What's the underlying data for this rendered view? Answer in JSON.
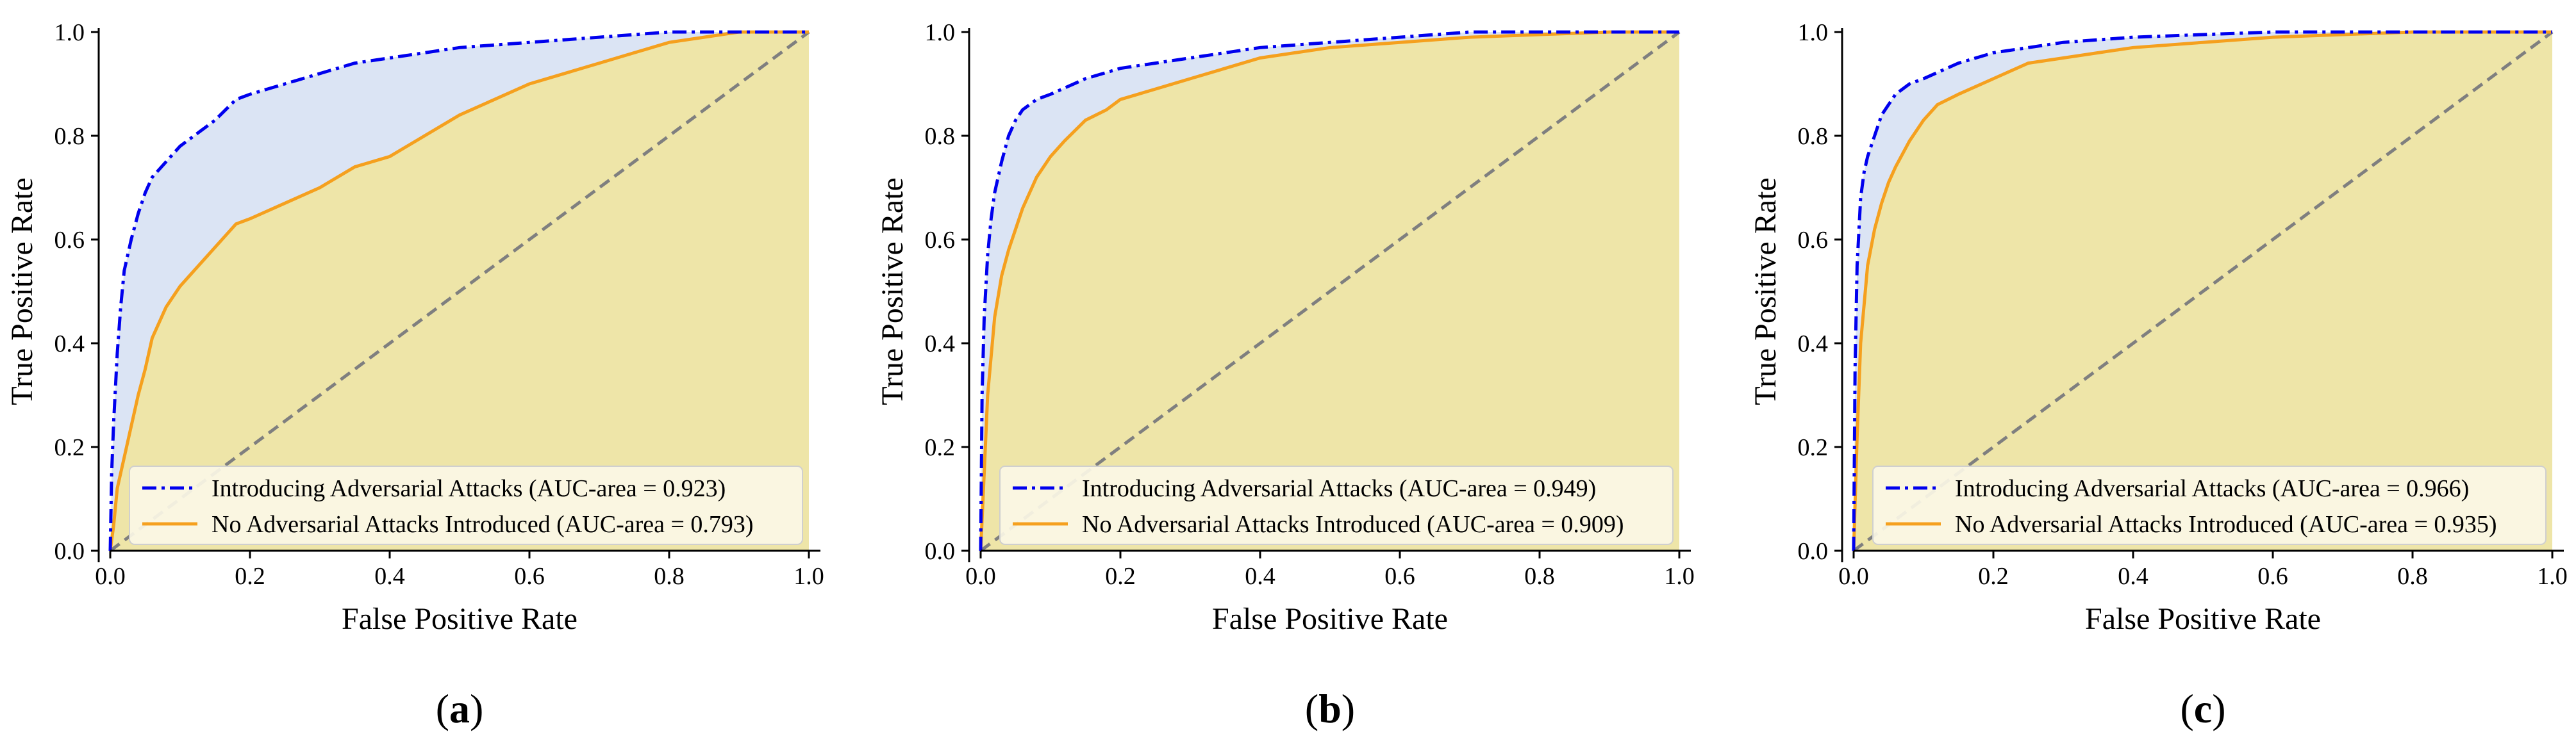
{
  "colors": {
    "adversarial_line": "#0000ee",
    "adversarial_fill": "#dbe4f4",
    "no_adversarial_line": "#f5a01e",
    "no_adversarial_fill": "#eee5a8",
    "chance_line": "#7f7f7f",
    "legend_background": "#fbf7e6",
    "legend_border": "#cfcfcf",
    "axis": "#000000"
  },
  "chart_data": [
    {
      "type": "line",
      "caption": "(a)",
      "xlabel": "False Positive Rate",
      "ylabel": "True Positive Rate",
      "xlim": [
        0,
        1
      ],
      "ylim": [
        0,
        1
      ],
      "xticks": [
        "0.0",
        "0.2",
        "0.4",
        "0.6",
        "0.8",
        "1.0"
      ],
      "yticks": [
        "0.0",
        "0.2",
        "0.4",
        "0.6",
        "0.8",
        "1.0"
      ],
      "grid": false,
      "legend_position": "bottom-right",
      "series": [
        {
          "name": "Introducing Adversarial Attacks (AUC-area = 0.923)",
          "style": "dash-dot",
          "x": [
            0,
            0.002,
            0.005,
            0.01,
            0.015,
            0.02,
            0.03,
            0.04,
            0.05,
            0.06,
            0.08,
            0.1,
            0.12,
            0.15,
            0.18,
            0.2,
            0.25,
            0.3,
            0.35,
            0.4,
            0.45,
            0.5,
            0.6,
            0.7,
            0.8,
            0.9,
            1.0
          ],
          "y": [
            0,
            0.15,
            0.25,
            0.38,
            0.47,
            0.54,
            0.6,
            0.65,
            0.69,
            0.72,
            0.75,
            0.78,
            0.8,
            0.83,
            0.87,
            0.88,
            0.9,
            0.92,
            0.94,
            0.95,
            0.96,
            0.97,
            0.98,
            0.99,
            1.0,
            1.0,
            1.0
          ]
        },
        {
          "name": "No Adversarial Attacks Introduced (AUC-area = 0.793)",
          "style": "solid",
          "x": [
            0,
            0.005,
            0.01,
            0.02,
            0.03,
            0.04,
            0.05,
            0.06,
            0.07,
            0.08,
            0.1,
            0.12,
            0.14,
            0.16,
            0.18,
            0.2,
            0.25,
            0.3,
            0.35,
            0.4,
            0.45,
            0.5,
            0.55,
            0.6,
            0.65,
            0.7,
            0.75,
            0.8,
            0.85,
            0.9,
            0.95,
            1.0
          ],
          "y": [
            0,
            0.05,
            0.12,
            0.18,
            0.24,
            0.3,
            0.35,
            0.41,
            0.44,
            0.47,
            0.51,
            0.54,
            0.57,
            0.6,
            0.63,
            0.64,
            0.67,
            0.7,
            0.74,
            0.76,
            0.8,
            0.84,
            0.87,
            0.9,
            0.92,
            0.94,
            0.96,
            0.98,
            0.99,
            1.0,
            1.0,
            1.0
          ]
        },
        {
          "name": "",
          "style": "dashed",
          "x": [
            0,
            1
          ],
          "y": [
            0,
            1
          ]
        }
      ]
    },
    {
      "type": "line",
      "caption": "(b)",
      "xlabel": "False Positive Rate",
      "ylabel": "True Positive Rate",
      "xlim": [
        0,
        1
      ],
      "ylim": [
        0,
        1
      ],
      "xticks": [
        "0.0",
        "0.2",
        "0.4",
        "0.6",
        "0.8",
        "1.0"
      ],
      "yticks": [
        "0.0",
        "0.2",
        "0.4",
        "0.6",
        "0.8",
        "1.0"
      ],
      "grid": false,
      "legend_position": "bottom-right",
      "series": [
        {
          "name": "Introducing Adversarial Attacks (AUC-area = 0.949)",
          "style": "dash-dot",
          "x": [
            0,
            0.002,
            0.005,
            0.01,
            0.015,
            0.02,
            0.03,
            0.04,
            0.05,
            0.06,
            0.08,
            0.1,
            0.15,
            0.2,
            0.25,
            0.3,
            0.35,
            0.4,
            0.5,
            0.6,
            0.7,
            0.8,
            0.9,
            1.0
          ],
          "y": [
            0,
            0.3,
            0.45,
            0.57,
            0.64,
            0.69,
            0.75,
            0.8,
            0.83,
            0.85,
            0.87,
            0.88,
            0.91,
            0.93,
            0.94,
            0.95,
            0.96,
            0.97,
            0.98,
            0.99,
            1.0,
            1.0,
            1.0,
            1.0
          ]
        },
        {
          "name": "No Adversarial Attacks Introduced (AUC-area = 0.909)",
          "style": "solid",
          "x": [
            0,
            0.005,
            0.01,
            0.02,
            0.03,
            0.04,
            0.05,
            0.06,
            0.08,
            0.1,
            0.12,
            0.15,
            0.18,
            0.2,
            0.25,
            0.3,
            0.35,
            0.4,
            0.45,
            0.5,
            0.6,
            0.7,
            0.8,
            0.9,
            1.0
          ],
          "y": [
            0,
            0.15,
            0.3,
            0.45,
            0.53,
            0.58,
            0.62,
            0.66,
            0.72,
            0.76,
            0.79,
            0.83,
            0.85,
            0.87,
            0.89,
            0.91,
            0.93,
            0.95,
            0.96,
            0.97,
            0.98,
            0.99,
            0.995,
            1.0,
            1.0
          ]
        },
        {
          "name": "",
          "style": "dashed",
          "x": [
            0,
            1
          ],
          "y": [
            0,
            1
          ]
        }
      ]
    },
    {
      "type": "line",
      "caption": "(c)",
      "xlabel": "False Positive Rate",
      "ylabel": "True Positive Rate",
      "xlim": [
        0,
        1
      ],
      "ylim": [
        0,
        1
      ],
      "xticks": [
        "0.0",
        "0.2",
        "0.4",
        "0.6",
        "0.8",
        "1.0"
      ],
      "yticks": [
        "0.0",
        "0.2",
        "0.4",
        "0.6",
        "0.8",
        "1.0"
      ],
      "grid": false,
      "legend_position": "bottom-right",
      "series": [
        {
          "name": "Introducing Adversarial Attacks (AUC-area = 0.966)",
          "style": "dash-dot",
          "x": [
            0,
            0.002,
            0.005,
            0.01,
            0.015,
            0.02,
            0.03,
            0.04,
            0.05,
            0.06,
            0.08,
            0.1,
            0.15,
            0.2,
            0.25,
            0.3,
            0.4,
            0.5,
            0.6,
            0.7,
            0.8,
            1.0
          ],
          "y": [
            0,
            0.35,
            0.55,
            0.68,
            0.73,
            0.76,
            0.8,
            0.84,
            0.86,
            0.88,
            0.9,
            0.91,
            0.94,
            0.96,
            0.97,
            0.98,
            0.99,
            0.995,
            1.0,
            1.0,
            1.0,
            1.0
          ]
        },
        {
          "name": "No Adversarial Attacks Introduced (AUC-area = 0.935)",
          "style": "solid",
          "x": [
            0,
            0.005,
            0.01,
            0.02,
            0.03,
            0.04,
            0.05,
            0.06,
            0.08,
            0.1,
            0.12,
            0.15,
            0.2,
            0.25,
            0.3,
            0.35,
            0.4,
            0.5,
            0.6,
            0.7,
            0.8,
            0.9,
            1.0
          ],
          "y": [
            0,
            0.22,
            0.4,
            0.55,
            0.62,
            0.67,
            0.71,
            0.74,
            0.79,
            0.83,
            0.86,
            0.88,
            0.91,
            0.94,
            0.95,
            0.96,
            0.97,
            0.98,
            0.99,
            0.995,
            1.0,
            1.0,
            1.0
          ]
        },
        {
          "name": "",
          "style": "dashed",
          "x": [
            0,
            1
          ],
          "y": [
            0,
            1
          ]
        }
      ]
    }
  ]
}
